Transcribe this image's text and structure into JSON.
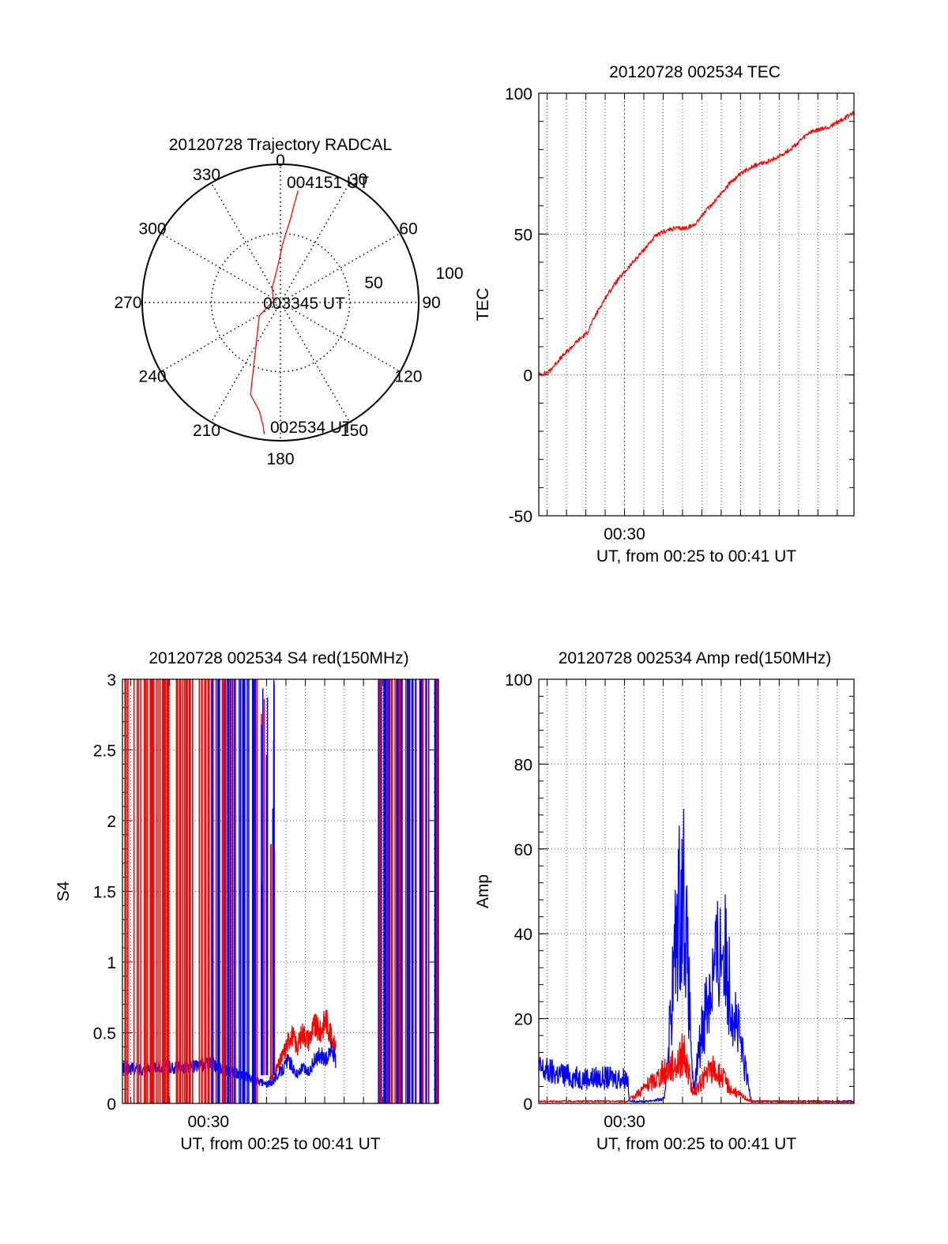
{
  "colors": {
    "red": "#ff0000",
    "blue": "#0000ff",
    "grid": "#555555",
    "axis": "#000000"
  },
  "chart_data": [
    {
      "id": "polar",
      "type": "polar",
      "title": "20120728 Trajectory RADCAL",
      "angle_ticks": [
        "0",
        "30",
        "60",
        "90",
        "120",
        "150",
        "180",
        "210",
        "240",
        "270",
        "300",
        "330"
      ],
      "radial_ticks": [
        "50",
        "100"
      ],
      "rlim": [
        0,
        100
      ],
      "grid": true,
      "track": {
        "color": "red",
        "azimuth_deg": [
          9,
          8,
          7,
          5,
          2,
          359,
          352,
          330,
          281,
          258,
          238,
          198,
          191,
          188,
          187
        ],
        "radius": [
          82,
          72,
          62,
          52,
          42,
          32,
          22,
          12,
          5,
          8,
          18,
          70,
          80,
          90,
          96
        ]
      },
      "annotations": [
        "004151 UT",
        "003345 UT",
        "002534 UT"
      ]
    },
    {
      "id": "tec",
      "type": "line",
      "title": "20120728 002534 TEC",
      "ylabel": "TEC",
      "xlabel": "UT, from 00:25 to 00:41 UT",
      "x_tick_label": "00:30",
      "xlim": [
        "00:25:34",
        "00:41:51"
      ],
      "ylim": [
        -50,
        100
      ],
      "y_ticks": [
        "-50",
        "0",
        "50",
        "100"
      ],
      "grid": true,
      "series": [
        {
          "color": "red",
          "x_min": [
            0,
            0.5,
            1,
            2,
            2.5,
            3,
            3.5,
            4,
            4.5,
            5,
            5.5,
            6,
            6.5,
            7,
            7.5,
            8,
            8.5,
            9,
            9.5,
            10,
            11,
            12,
            13,
            14,
            15,
            16.3
          ],
          "values": [
            0,
            1,
            5,
            12,
            15,
            22,
            28,
            33,
            37,
            41,
            45,
            49,
            51,
            52,
            52,
            53,
            57,
            61,
            65,
            69,
            74,
            76,
            80,
            86,
            88,
            93
          ]
        }
      ]
    },
    {
      "id": "s4",
      "type": "line",
      "title": "20120728 002534 S4 red(150MHz)",
      "ylabel": "S4",
      "xlabel": "UT, from 00:25 to 00:41 UT",
      "x_tick_label": "00:30",
      "xlim": [
        "00:25:34",
        "00:41:51"
      ],
      "ylim": [
        0,
        3
      ],
      "y_ticks": [
        "0",
        "0.5",
        "1",
        "1.5",
        "2",
        "2.5",
        "3"
      ],
      "grid": true,
      "series": [
        {
          "color": "red",
          "x_min": [
            7.5,
            7.7,
            8.0,
            8.3,
            8.5,
            8.7,
            9.0,
            9.3,
            9.6,
            9.9,
            10.2,
            10.5,
            10.8,
            11.0
          ],
          "values": [
            0.15,
            0.18,
            0.25,
            0.35,
            0.42,
            0.5,
            0.4,
            0.5,
            0.45,
            0.55,
            0.5,
            0.6,
            0.45,
            0.4
          ]
        },
        {
          "color": "blue",
          "x_min": [
            0,
            1,
            2,
            3,
            4,
            4.6,
            7.5,
            7.7,
            8.0,
            8.3,
            8.5,
            8.7,
            9.0,
            9.3,
            9.6,
            9.9,
            10.2,
            10.5,
            10.8,
            11.0
          ],
          "values": [
            0.25,
            0.24,
            0.26,
            0.25,
            0.27,
            0.28,
            0.13,
            0.15,
            0.2,
            0.25,
            0.3,
            0.28,
            0.2,
            0.25,
            0.22,
            0.3,
            0.35,
            0.3,
            0.4,
            0.3
          ]
        }
      ]
    },
    {
      "id": "amp",
      "type": "line",
      "title": "20120728 002534 Amp red(150MHz)",
      "ylabel": "Amp",
      "xlabel": "UT, from 00:25 to 00:41 UT",
      "x_tick_label": "00:30",
      "xlim": [
        "00:25:34",
        "00:41:51"
      ],
      "ylim": [
        0,
        100
      ],
      "y_ticks": [
        "0",
        "20",
        "40",
        "60",
        "80",
        "100"
      ],
      "grid": true,
      "series": [
        {
          "color": "blue",
          "x_min": [
            0,
            1,
            2,
            3,
            4,
            4.6,
            4.7,
            5.5,
            6.5,
            7.2,
            7.5,
            8.0,
            8.5,
            9.0,
            9.5,
            10.0,
            10.5,
            11.0,
            12,
            14,
            16.3
          ],
          "values": [
            8,
            7,
            6,
            6,
            6,
            6,
            0.5,
            0.5,
            1,
            45,
            52,
            2,
            20,
            30,
            38,
            25,
            12,
            0.5,
            0.5,
            0.5,
            0.5
          ]
        },
        {
          "color": "red",
          "x_min": [
            0,
            2,
            4,
            4.6,
            7.2,
            7.5,
            8.0,
            8.5,
            9.0,
            9.5,
            10.0,
            11.0,
            16.3
          ],
          "values": [
            0.5,
            0.5,
            0.5,
            0.5,
            10,
            12,
            2,
            6,
            8,
            6,
            3,
            0.5,
            0.3
          ]
        }
      ]
    }
  ]
}
